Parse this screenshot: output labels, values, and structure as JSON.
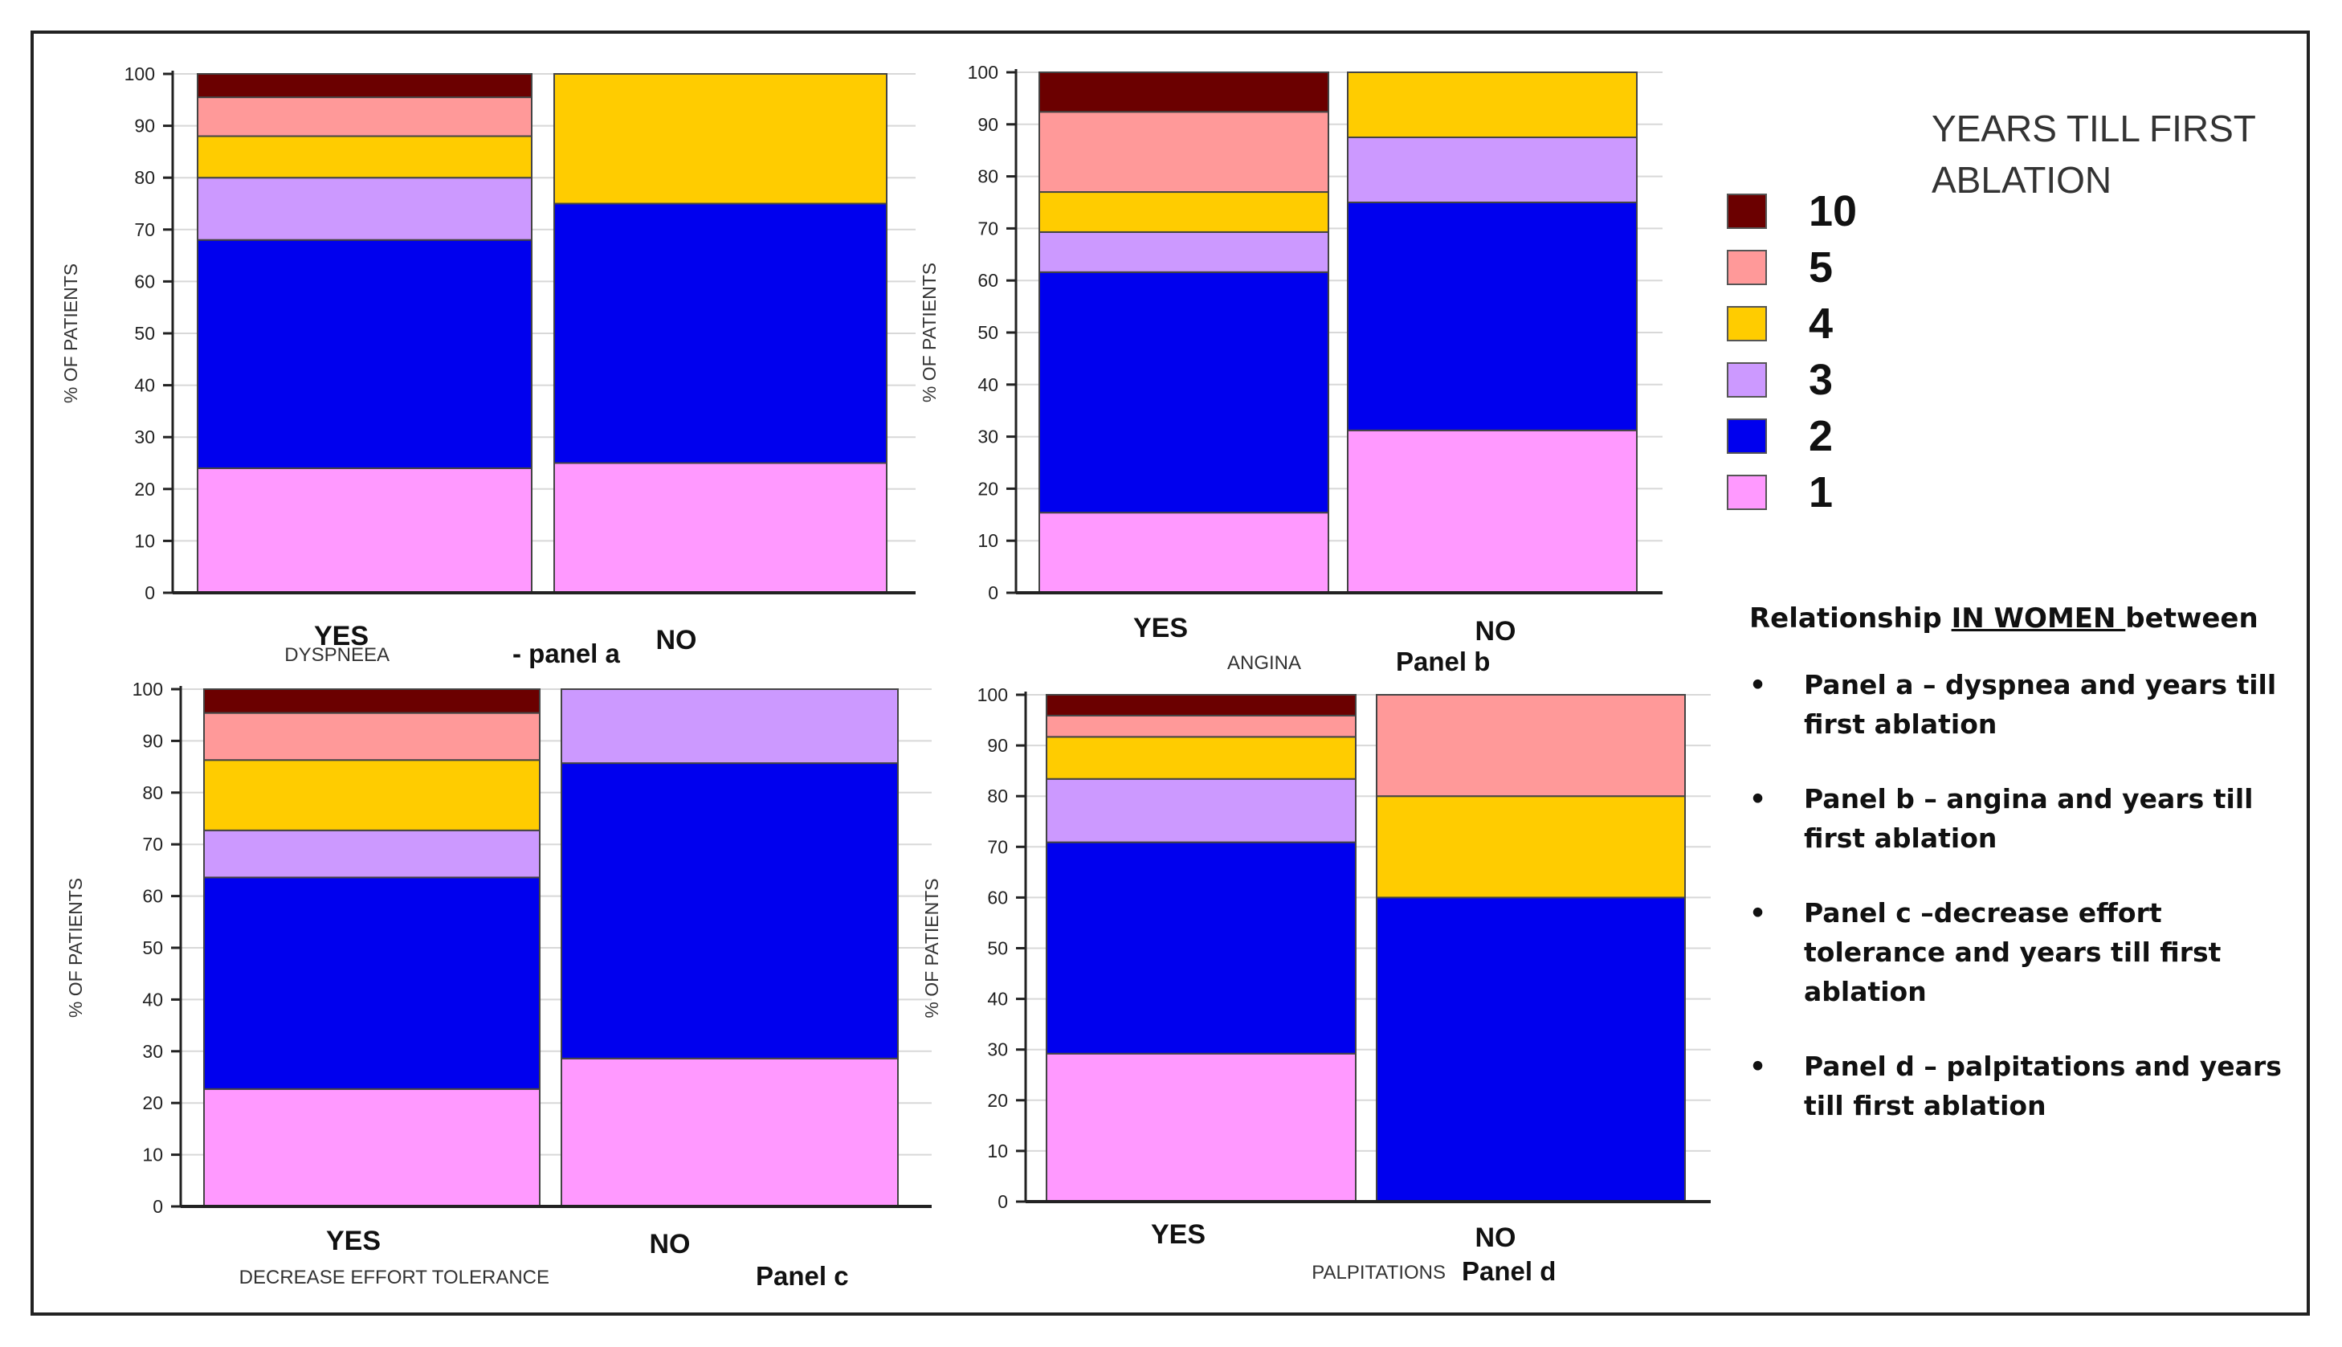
{
  "legend": {
    "title": "YEARS TILL FIRST\nABLATION",
    "items": [
      {
        "label": "10",
        "color": "#6b0000"
      },
      {
        "label": "5",
        "color": "#ff9999"
      },
      {
        "label": "4",
        "color": "#ffcc00"
      },
      {
        "label": "3",
        "color": "#cc99ff"
      },
      {
        "label": "2",
        "color": "#0000ee"
      },
      {
        "label": "1",
        "color": "#ff99ff"
      }
    ]
  },
  "notes": {
    "heading_pre": "Relationship ",
    "heading_underlined": "IN WOMEN ",
    "heading_post": "between",
    "bullet": "•",
    "items": [
      "Panel a – dyspnea and years till first ablation",
      " Panel b – angina and years till first ablation",
      "Panel c –decrease effort tolerance and years till first ablation",
      "Panel d – palpitations and years till first ablation"
    ]
  },
  "chart_data": [
    {
      "type": "bar",
      "stacked": true,
      "title": "DYSPNEEA",
      "panel_label": "- panel a",
      "ylabel": "% OF PATIENTS",
      "ylim": [
        0,
        100
      ],
      "yticks": [
        0,
        10,
        20,
        30,
        40,
        50,
        60,
        70,
        80,
        90,
        100
      ],
      "categories": [
        "YES",
        "NO"
      ],
      "series": [
        {
          "name": "1",
          "values": [
            24,
            25
          ]
        },
        {
          "name": "2",
          "values": [
            44,
            50
          ]
        },
        {
          "name": "3",
          "values": [
            12,
            0
          ]
        },
        {
          "name": "4",
          "values": [
            8,
            25
          ]
        },
        {
          "name": "5",
          "values": [
            7.5,
            0
          ]
        },
        {
          "name": "10",
          "values": [
            4.5,
            0
          ]
        }
      ]
    },
    {
      "type": "bar",
      "stacked": true,
      "title": "ANGINA",
      "panel_label": "Panel b",
      "ylabel": "% OF PATIENTS",
      "ylim": [
        0,
        100
      ],
      "yticks": [
        0,
        10,
        20,
        30,
        40,
        50,
        60,
        70,
        80,
        90,
        100
      ],
      "categories": [
        "YES",
        "NO"
      ],
      "series": [
        {
          "name": "1",
          "values": [
            15.4,
            31.2
          ]
        },
        {
          "name": "2",
          "values": [
            46.2,
            43.8
          ]
        },
        {
          "name": "3",
          "values": [
            7.7,
            12.5
          ]
        },
        {
          "name": "4",
          "values": [
            7.7,
            12.5
          ]
        },
        {
          "name": "5",
          "values": [
            15.4,
            0
          ]
        },
        {
          "name": "10",
          "values": [
            7.6,
            0
          ]
        }
      ]
    },
    {
      "type": "bar",
      "stacked": true,
      "title": "DECREASE EFFORT TOLERANCE",
      "panel_label": "Panel c",
      "ylabel": "% OF PATIENTS",
      "ylim": [
        0,
        100
      ],
      "yticks": [
        0,
        10,
        20,
        30,
        40,
        50,
        60,
        70,
        80,
        90,
        100
      ],
      "categories": [
        "YES",
        "NO"
      ],
      "series": [
        {
          "name": "1",
          "values": [
            22.7,
            28.6
          ]
        },
        {
          "name": "2",
          "values": [
            40.9,
            57.1
          ]
        },
        {
          "name": "3",
          "values": [
            9.1,
            14.3
          ]
        },
        {
          "name": "4",
          "values": [
            13.6,
            0
          ]
        },
        {
          "name": "5",
          "values": [
            9.1,
            0
          ]
        },
        {
          "name": "10",
          "values": [
            4.6,
            0
          ]
        }
      ]
    },
    {
      "type": "bar",
      "stacked": true,
      "title": "PALPITATIONS",
      "panel_label": "Panel d",
      "ylabel": "% OF PATIENTS",
      "ylim": [
        0,
        100
      ],
      "yticks": [
        0,
        10,
        20,
        30,
        40,
        50,
        60,
        70,
        80,
        90,
        100
      ],
      "categories": [
        "YES",
        "NO"
      ],
      "series": [
        {
          "name": "1",
          "values": [
            29.2,
            0
          ]
        },
        {
          "name": "2",
          "values": [
            41.7,
            60
          ]
        },
        {
          "name": "3",
          "values": [
            12.5,
            0
          ]
        },
        {
          "name": "4",
          "values": [
            8.3,
            20
          ]
        },
        {
          "name": "5",
          "values": [
            4.2,
            20
          ]
        },
        {
          "name": "10",
          "values": [
            4.1,
            0
          ]
        }
      ]
    }
  ]
}
